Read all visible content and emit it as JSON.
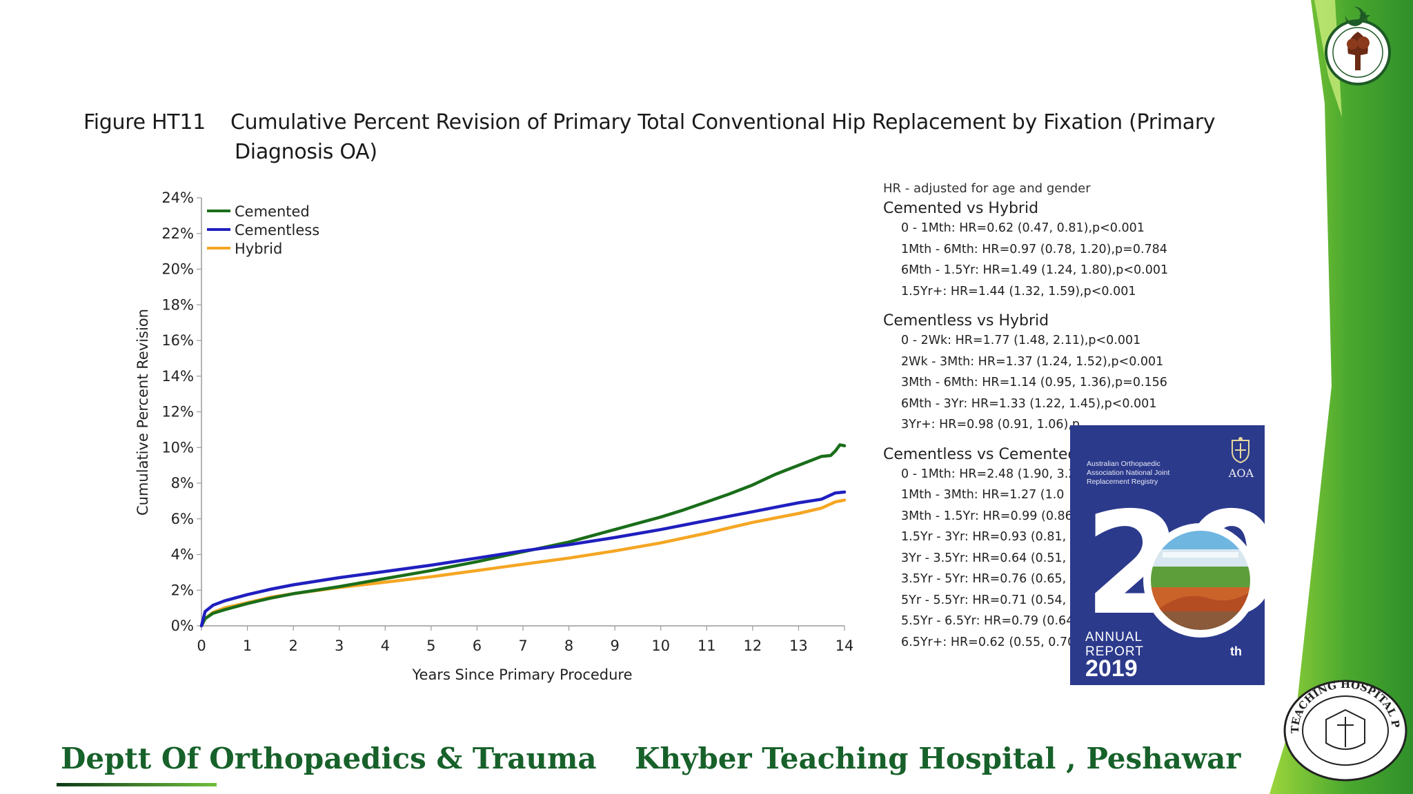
{
  "figure": {
    "number": "Figure HT11",
    "title_line1": "Cumulative Percent Revision of Primary Total Conventional Hip Replacement by Fixation (Primary",
    "title_line2": "Diagnosis OA)"
  },
  "chart_data": {
    "type": "line",
    "title": "Cumulative Percent Revision of Primary Total Conventional Hip Replacement by Fixation (Primary Diagnosis OA)",
    "xlabel": "Years Since Primary Procedure",
    "ylabel": "Cumulative Percent Revision",
    "xlim": [
      0,
      14
    ],
    "ylim": [
      0,
      24
    ],
    "x_ticks": [
      0,
      1,
      2,
      3,
      4,
      5,
      6,
      7,
      8,
      9,
      10,
      11,
      12,
      13,
      14
    ],
    "x_tick_labels": [
      "0",
      "1",
      "2",
      "3",
      "4",
      "5",
      "6",
      "7",
      "8",
      "9",
      "10",
      "11",
      "12",
      "13",
      "14"
    ],
    "y_ticks": [
      0,
      2,
      4,
      6,
      8,
      10,
      12,
      14,
      16,
      18,
      20,
      22,
      24
    ],
    "y_tick_labels": [
      "0%",
      "2%",
      "4%",
      "6%",
      "8%",
      "10%",
      "12%",
      "14%",
      "16%",
      "18%",
      "20%",
      "22%",
      "24%"
    ],
    "grid": false,
    "legend_position": "top-left",
    "series": [
      {
        "name": "Cemented",
        "color": "#1a6e1a",
        "x": [
          0,
          0.08,
          0.25,
          0.5,
          1,
          1.5,
          2,
          3,
          4,
          5,
          6,
          7,
          8,
          8.5,
          9,
          9.5,
          10,
          10.5,
          11,
          11.5,
          12,
          12.5,
          13,
          13.3,
          13.5,
          13.7,
          13.8,
          13.9,
          14
        ],
        "y": [
          0,
          0.4,
          0.7,
          0.9,
          1.25,
          1.55,
          1.8,
          2.2,
          2.65,
          3.1,
          3.6,
          4.15,
          4.7,
          5.05,
          5.4,
          5.75,
          6.1,
          6.5,
          6.95,
          7.4,
          7.9,
          8.5,
          9.0,
          9.3,
          9.5,
          9.55,
          9.8,
          10.15,
          10.1
        ]
      },
      {
        "name": "Cementless",
        "color": "#1f1fbf",
        "x": [
          0,
          0.08,
          0.25,
          0.5,
          1,
          1.5,
          2,
          3,
          4,
          5,
          6,
          7,
          8,
          9,
          10,
          11,
          12,
          13,
          13.5,
          13.8,
          14
        ],
        "y": [
          0,
          0.8,
          1.15,
          1.4,
          1.75,
          2.05,
          2.3,
          2.7,
          3.05,
          3.4,
          3.8,
          4.2,
          4.55,
          4.95,
          5.4,
          5.9,
          6.4,
          6.9,
          7.1,
          7.45,
          7.5
        ]
      },
      {
        "name": "Hybrid",
        "color": "#f5a623",
        "x": [
          0,
          0.08,
          0.25,
          0.5,
          1,
          1.5,
          2,
          3,
          4,
          5,
          6,
          7,
          8,
          9,
          10,
          11,
          12,
          13,
          13.5,
          13.8,
          14
        ],
        "y": [
          0,
          0.4,
          0.75,
          1.0,
          1.3,
          1.6,
          1.8,
          2.15,
          2.45,
          2.75,
          3.1,
          3.45,
          3.8,
          4.2,
          4.65,
          5.2,
          5.8,
          6.3,
          6.6,
          6.95,
          7.05
        ]
      }
    ]
  },
  "hr_panel": {
    "note": "HR - adjusted for age and gender",
    "groups": [
      {
        "heading": "Cemented vs Hybrid",
        "lines": [
          "0 - 1Mth: HR=0.62 (0.47, 0.81),p<0.001",
          "1Mth - 6Mth: HR=0.97 (0.78, 1.20),p=0.784",
          "6Mth - 1.5Yr: HR=1.49 (1.24, 1.80),p<0.001",
          "1.5Yr+: HR=1.44 (1.32, 1.59),p<0.001"
        ]
      },
      {
        "heading": "Cementless vs Hybrid",
        "lines": [
          "0 - 2Wk: HR=1.77 (1.48, 2.11),p<0.001",
          "2Wk - 3Mth: HR=1.37 (1.24, 1.52),p<0.001",
          "3Mth - 6Mth: HR=1.14 (0.95, 1.36),p=0.156",
          "6Mth - 3Yr: HR=1.33 (1.22, 1.45),p<0.001",
          "3Yr+: HR=0.98 (0.91, 1.06),p"
        ]
      },
      {
        "heading": "Cementless vs Cemented",
        "lines": [
          "0 - 1Mth: HR=2.48 (1.90, 3.2",
          "1Mth - 3Mth: HR=1.27 (1.0",
          "3Mth - 1.5Yr: HR=0.99 (0.86",
          "1.5Yr - 3Yr: HR=0.93 (0.81, 1",
          "3Yr - 3.5Yr: HR=0.64 (0.51, 0",
          "3.5Yr - 5Yr: HR=0.76 (0.65, 0",
          "5Yr - 5.5Yr: HR=0.71 (0.54, 0",
          "5.5Yr - 6.5Yr: HR=0.79 (0.64",
          "6.5Yr+: HR=0.62 (0.55, 0.70)"
        ]
      }
    ]
  },
  "report_cover": {
    "org": "Australian Orthopaedic Association National Joint Replacement Registry",
    "aoa": "AOA",
    "big_number": "20",
    "annual": "ANNUAL",
    "report": "REPORT",
    "year": "2019",
    "suffix": "th"
  },
  "footer": {
    "dept": "Deptt Of Orthopaedics & Trauma",
    "hospital": "Khyber Teaching Hospital , Peshawar"
  },
  "colors": {
    "cemented": "#1a6e1a",
    "cementless": "#1f1fbf",
    "hybrid": "#f5a623",
    "footer_text": "#17612a",
    "cover_bg": "#2c3a8c",
    "side_green": "#5cb82e"
  },
  "logos": {
    "top_right": "pakistan-orthopaedic-association-logo",
    "bottom_right": "khyber-teaching-hospital-peshawar-seal",
    "seal_text": "KHYBER TEACHING HOSPITAL PESHAWAR"
  }
}
